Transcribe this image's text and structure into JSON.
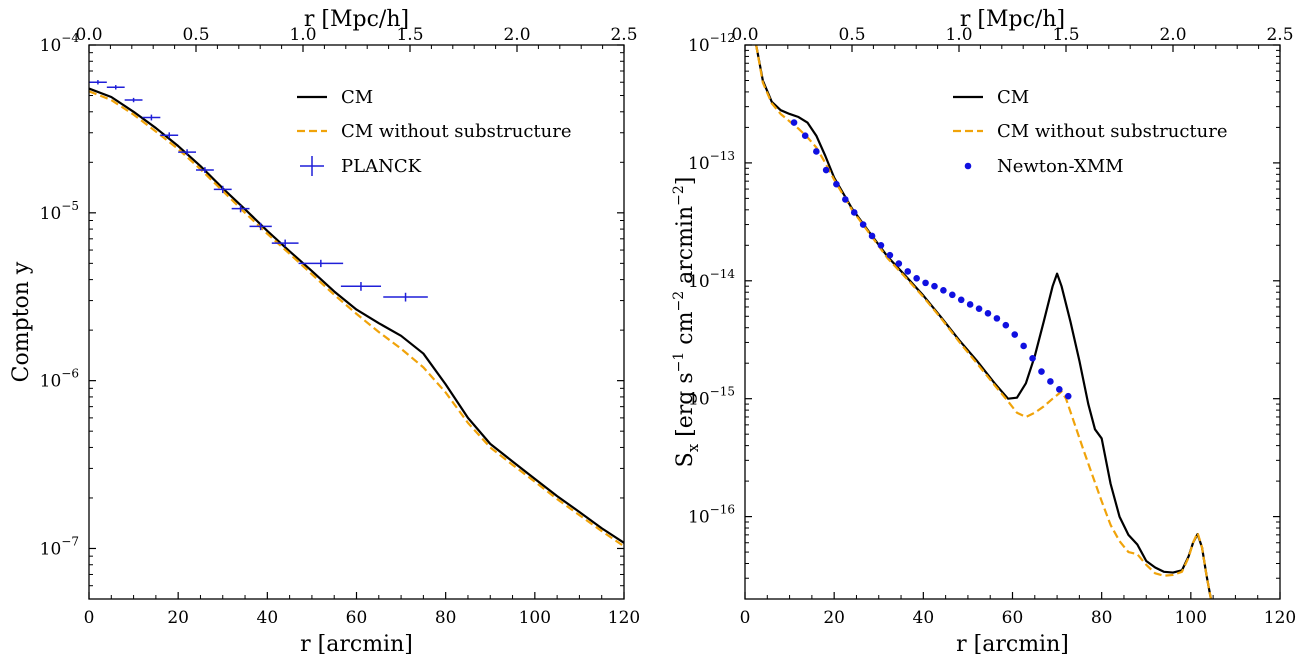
{
  "chart_data": [
    {
      "type": "line",
      "xlabel": "r [arcmin]",
      "ylabel": "Compton y",
      "x2label": "r [Mpc/h]",
      "xlim": [
        0,
        120
      ],
      "ylim": [
        5e-08,
        0.0001
      ],
      "yscale": "log",
      "x2lim": [
        0,
        2.5
      ],
      "xticks": [
        "0",
        "20",
        "40",
        "60",
        "80",
        "100",
        "120"
      ],
      "x2ticks": [
        "0.0",
        "0.5",
        "1.0",
        "1.5",
        "2.0",
        "2.5"
      ],
      "yticks": [
        {
          "base": "10",
          "exp": "−4",
          "value": 0.0001
        },
        {
          "base": "10",
          "exp": "−5",
          "value": 1e-05
        },
        {
          "base": "10",
          "exp": "−6",
          "value": 1e-06
        },
        {
          "base": "10",
          "exp": "−7",
          "value": 1e-07
        }
      ],
      "legend_position": "top-right",
      "series": [
        {
          "name": "CM",
          "style": "solid",
          "color": "#000000",
          "x": [
            0,
            5,
            10,
            15,
            20,
            25,
            30,
            35,
            40,
            45,
            50,
            55,
            60,
            65,
            70,
            75,
            80,
            85,
            90,
            95,
            100,
            105,
            110,
            115,
            120
          ],
          "y": [
            5.5e-05,
            4.9e-05,
            4e-05,
            3.2e-05,
            2.5e-05,
            1.9e-05,
            1.4e-05,
            1.05e-05,
            7.8e-06,
            5.9e-06,
            4.5e-06,
            3.4e-06,
            2.65e-06,
            2.2e-06,
            1.85e-06,
            1.45e-06,
            9.5e-07,
            6e-07,
            4.2e-07,
            3.3e-07,
            2.6e-07,
            2.05e-07,
            1.65e-07,
            1.32e-07,
            1.08e-07
          ]
        },
        {
          "name": "CM without substructure",
          "style": "dashed",
          "color": "#F0A30A",
          "x": [
            0,
            5,
            10,
            15,
            20,
            25,
            30,
            35,
            40,
            45,
            50,
            55,
            60,
            65,
            70,
            75,
            80,
            85,
            90,
            95,
            100,
            105,
            110,
            115,
            120
          ],
          "y": [
            5.3e-05,
            4.7e-05,
            3.85e-05,
            3.05e-05,
            2.4e-05,
            1.82e-05,
            1.35e-05,
            1e-05,
            7.5e-06,
            5.7e-06,
            4.3e-06,
            3.25e-06,
            2.5e-06,
            1.95e-06,
            1.55e-06,
            1.2e-06,
            8.5e-07,
            5.6e-07,
            4e-07,
            3.15e-07,
            2.5e-07,
            1.97e-07,
            1.58e-07,
            1.27e-07,
            1.03e-07
          ]
        }
      ],
      "errorbars": {
        "name": "PLANCK",
        "color": "#1F1FD8",
        "x": [
          2,
          6,
          10,
          14,
          18,
          22,
          26,
          30,
          34,
          38.5,
          44,
          52,
          61,
          71
        ],
        "y": [
          6e-05,
          5.6e-05,
          4.7e-05,
          3.7e-05,
          2.9e-05,
          2.3e-05,
          1.8e-05,
          1.38e-05,
          1.06e-05,
          8.3e-06,
          6.6e-06,
          5e-06,
          3.65e-06,
          3.15e-06
        ],
        "xerr": [
          2,
          2,
          2,
          2,
          2,
          2,
          2,
          2,
          2,
          2.5,
          3,
          5,
          4.5,
          5
        ],
        "yerr_rel": [
          0.03,
          0.03,
          0.03,
          0.04,
          0.04,
          0.04,
          0.04,
          0.05,
          0.05,
          0.05,
          0.05,
          0.05,
          0.06,
          0.06
        ]
      }
    },
    {
      "type": "line",
      "xlabel": "r [arcmin]",
      "ylabel_parts": [
        "S",
        "x",
        " [erg s",
        "−1",
        " cm",
        "−2",
        " arcmin",
        "−2",
        "]"
      ],
      "x2label": "r [Mpc/h]",
      "xlim": [
        0,
        120
      ],
      "ylim": [
        2e-17,
        1e-12
      ],
      "yscale": "log",
      "x2lim": [
        0,
        2.5
      ],
      "xticks": [
        "0",
        "20",
        "40",
        "60",
        "80",
        "100",
        "120"
      ],
      "x2ticks": [
        "0.0",
        "0.5",
        "1.0",
        "1.5",
        "2.0",
        "2.5"
      ],
      "yticks": [
        {
          "base": "10",
          "exp": "−12",
          "value": 1e-12
        },
        {
          "base": "10",
          "exp": "−13",
          "value": 1e-13
        },
        {
          "base": "10",
          "exp": "−14",
          "value": 1e-14
        },
        {
          "base": "10",
          "exp": "−15",
          "value": 1e-15
        },
        {
          "base": "10",
          "exp": "−16",
          "value": 1e-16
        }
      ],
      "legend_position": "top-right",
      "series": [
        {
          "name": "CM",
          "style": "solid",
          "color": "#000000",
          "x": [
            2.5,
            4,
            6,
            8,
            10,
            12,
            14,
            16,
            18,
            20,
            24,
            28,
            32,
            36,
            40,
            44,
            48,
            52,
            56,
            59,
            61,
            63,
            65,
            67,
            69,
            70,
            71,
            73,
            75,
            77,
            78.5,
            80,
            82,
            84,
            86,
            88,
            90,
            92,
            94,
            96,
            98,
            99.5,
            100.5,
            101.5,
            102.5,
            103.5,
            104.5
          ],
          "y": [
            1e-12,
            5e-13,
            3.3e-13,
            2.8e-13,
            2.6e-13,
            2.45e-13,
            2.2e-13,
            1.7e-13,
            1.15e-13,
            7.5e-14,
            4.1e-14,
            2.55e-14,
            1.6e-14,
            1.1e-14,
            7.5e-15,
            4.9e-15,
            3.15e-15,
            2.1e-15,
            1.35e-15,
            1e-15,
            1.02e-15,
            1.35e-15,
            2.3e-15,
            4.5e-15,
            9e-15,
            1.15e-14,
            9e-15,
            4.5e-15,
            2.1e-15,
            9e-16,
            5.5e-16,
            4.6e-16,
            1.9e-16,
            1e-16,
            7e-17,
            5.8e-17,
            4.2e-17,
            3.7e-17,
            3.4e-17,
            3.35e-17,
            3.5e-17,
            4.6e-17,
            6e-17,
            7.1e-17,
            5.5e-17,
            3.2e-17,
            2e-17
          ]
        },
        {
          "name": "CM without substructure",
          "style": "dashed",
          "color": "#F0A30A",
          "x": [
            2.5,
            4,
            6,
            8,
            10,
            12,
            14,
            16,
            18,
            20,
            24,
            28,
            32,
            36,
            40,
            44,
            48,
            52,
            56,
            59,
            61,
            63,
            65,
            67,
            69,
            71,
            72,
            74,
            76,
            78,
            80,
            82,
            84,
            86,
            88,
            90,
            92,
            94,
            96,
            98,
            99.5,
            100.5,
            101.5,
            102.5,
            103.5,
            104.5
          ],
          "y": [
            1e-12,
            4.8e-13,
            3.2e-13,
            2.6e-13,
            2.25e-13,
            1.95e-13,
            1.65e-13,
            1.35e-13,
            1e-13,
            7.2e-14,
            4e-14,
            2.5e-14,
            1.55e-14,
            1.07e-14,
            7.3e-15,
            4.8e-15,
            3.05e-15,
            2e-15,
            1.3e-15,
            9.5e-16,
            7.6e-16,
            7e-16,
            7.6e-16,
            8.6e-16,
            1e-15,
            1.15e-15,
            1e-15,
            6e-16,
            3.6e-16,
            2.2e-16,
            1.35e-16,
            8.5e-17,
            6.2e-17,
            5e-17,
            4.8e-17,
            3.9e-17,
            3.3e-17,
            3.15e-17,
            3.2e-17,
            3.4e-17,
            4.5e-17,
            6e-17,
            7.3e-17,
            5.5e-17,
            3.2e-17,
            2e-17
          ]
        }
      ],
      "points": {
        "name": "Newton-XMM",
        "color": "#1010E0",
        "x": [
          11,
          13.5,
          16,
          18.2,
          20.5,
          22.5,
          24.5,
          26.5,
          28.5,
          30.5,
          32.5,
          34.5,
          36.5,
          38.5,
          40.5,
          42.5,
          44.5,
          46.5,
          48.5,
          50.5,
          52.5,
          54.5,
          56.5,
          58.5,
          60.5,
          62.5,
          64.5,
          66.5,
          68.5,
          70.5,
          72.5
        ],
        "y": [
          2.2e-13,
          1.7e-13,
          1.25e-13,
          8.7e-14,
          6.6e-14,
          4.9e-14,
          3.8e-14,
          3e-14,
          2.4e-14,
          2e-14,
          1.65e-14,
          1.4e-14,
          1.2e-14,
          1.05e-14,
          9.6e-15,
          9e-15,
          8.3e-15,
          7.6e-15,
          6.9e-15,
          6.3e-15,
          5.8e-15,
          5.3e-15,
          4.8e-15,
          4.2e-15,
          3.5e-15,
          2.8e-15,
          2.2e-15,
          1.7e-15,
          1.4e-15,
          1.2e-15,
          1.05e-15
        ]
      }
    }
  ]
}
